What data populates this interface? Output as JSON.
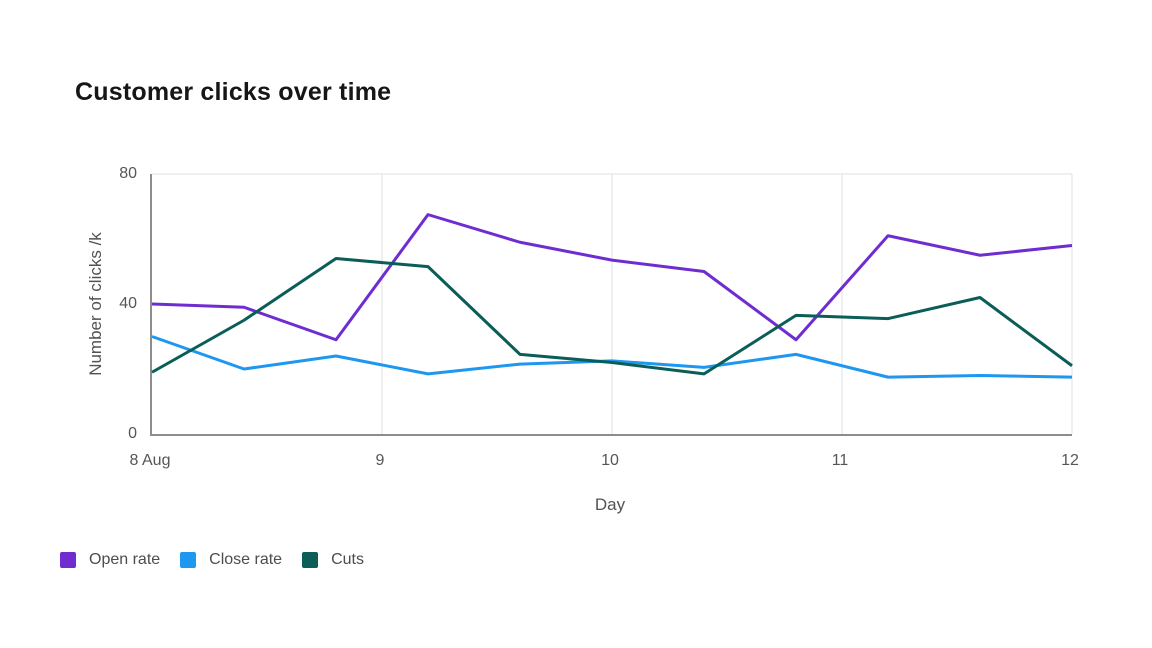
{
  "page": {
    "background_color": "#ffffff"
  },
  "header": {
    "title": "Customer clicks over time",
    "title_color": "#161616"
  },
  "axes": {
    "y_title": "Number of clicks /k",
    "x_title": "Day",
    "y_ticks": [
      {
        "value": 80,
        "label": "80"
      },
      {
        "value": 40,
        "label": "40"
      },
      {
        "value": 0,
        "label": "0"
      }
    ],
    "x_ticks": [
      {
        "x": 8,
        "label": "8 Aug"
      },
      {
        "x": 9,
        "label": "9"
      },
      {
        "x": 10,
        "label": "10"
      },
      {
        "x": 11,
        "label": "11"
      },
      {
        "x": 12,
        "label": "12"
      }
    ],
    "grid_x": [
      9,
      10,
      11,
      12
    ],
    "grid_y": [
      80
    ],
    "axis_color": "#8d8d8d",
    "grid_color": "#e2e2e2",
    "tick_color": "#565656",
    "axis_title_color": "#525252"
  },
  "legend": {
    "text_color": "#4d4d4d",
    "position": "bottom-left"
  },
  "chart_data": {
    "type": "line",
    "title": "Customer clicks over time",
    "xlabel": "Day",
    "ylabel": "Number of clicks /k",
    "xlim": [
      8,
      12
    ],
    "ylim": [
      0,
      80
    ],
    "grid": "on",
    "legend_position": "bottom-left",
    "x_unit": "day of August",
    "x": [
      8,
      8.4,
      8.8,
      9.2,
      9.6,
      10,
      10.4,
      10.8,
      11.2,
      11.6,
      12
    ],
    "series": [
      {
        "name": "Open rate",
        "color": "#6f2dd1",
        "values": [
          40,
          39,
          29,
          67.5,
          59,
          53.5,
          50,
          29,
          61,
          55,
          58
        ]
      },
      {
        "name": "Close rate",
        "color": "#1e97f0",
        "values": [
          30,
          20,
          24,
          18.5,
          21.5,
          22.5,
          20.5,
          24.5,
          17.5,
          18,
          17.5
        ]
      },
      {
        "name": "Cuts",
        "color": "#0b5d57",
        "values": [
          19,
          35,
          54,
          51.5,
          24.5,
          22,
          18.5,
          36.5,
          35.5,
          42,
          21
        ]
      }
    ]
  }
}
